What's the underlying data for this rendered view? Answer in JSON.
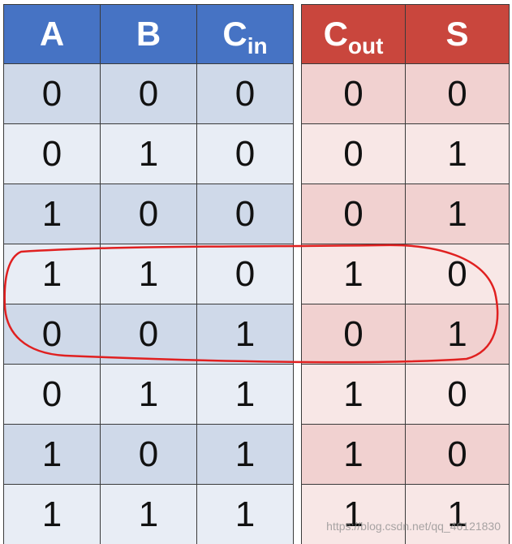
{
  "inputs": {
    "header_color": "#4673c4",
    "headers": [
      {
        "main": "A",
        "sub": ""
      },
      {
        "main": "B",
        "sub": ""
      },
      {
        "main": "C",
        "sub": "in"
      }
    ]
  },
  "outputs": {
    "header_color": "#c9463d",
    "headers": [
      {
        "main": "C",
        "sub": "out"
      },
      {
        "main": "S",
        "sub": ""
      }
    ]
  },
  "rows": [
    {
      "A": "0",
      "B": "0",
      "Cin": "0",
      "Cout": "0",
      "S": "0"
    },
    {
      "A": "0",
      "B": "1",
      "Cin": "0",
      "Cout": "0",
      "S": "1"
    },
    {
      "A": "1",
      "B": "0",
      "Cin": "0",
      "Cout": "0",
      "S": "1"
    },
    {
      "A": "1",
      "B": "1",
      "Cin": "0",
      "Cout": "1",
      "S": "0"
    },
    {
      "A": "0",
      "B": "0",
      "Cin": "1",
      "Cout": "0",
      "S": "1"
    },
    {
      "A": "0",
      "B": "1",
      "Cin": "1",
      "Cout": "1",
      "S": "0"
    },
    {
      "A": "1",
      "B": "0",
      "Cin": "1",
      "Cout": "1",
      "S": "0"
    },
    {
      "A": "1",
      "B": "1",
      "Cin": "1",
      "Cout": "1",
      "S": "1"
    }
  ],
  "highlight": {
    "rows": [
      4,
      5
    ],
    "color": "#e02020"
  },
  "watermark": "https://blog.csdn.net/qq_46121830"
}
